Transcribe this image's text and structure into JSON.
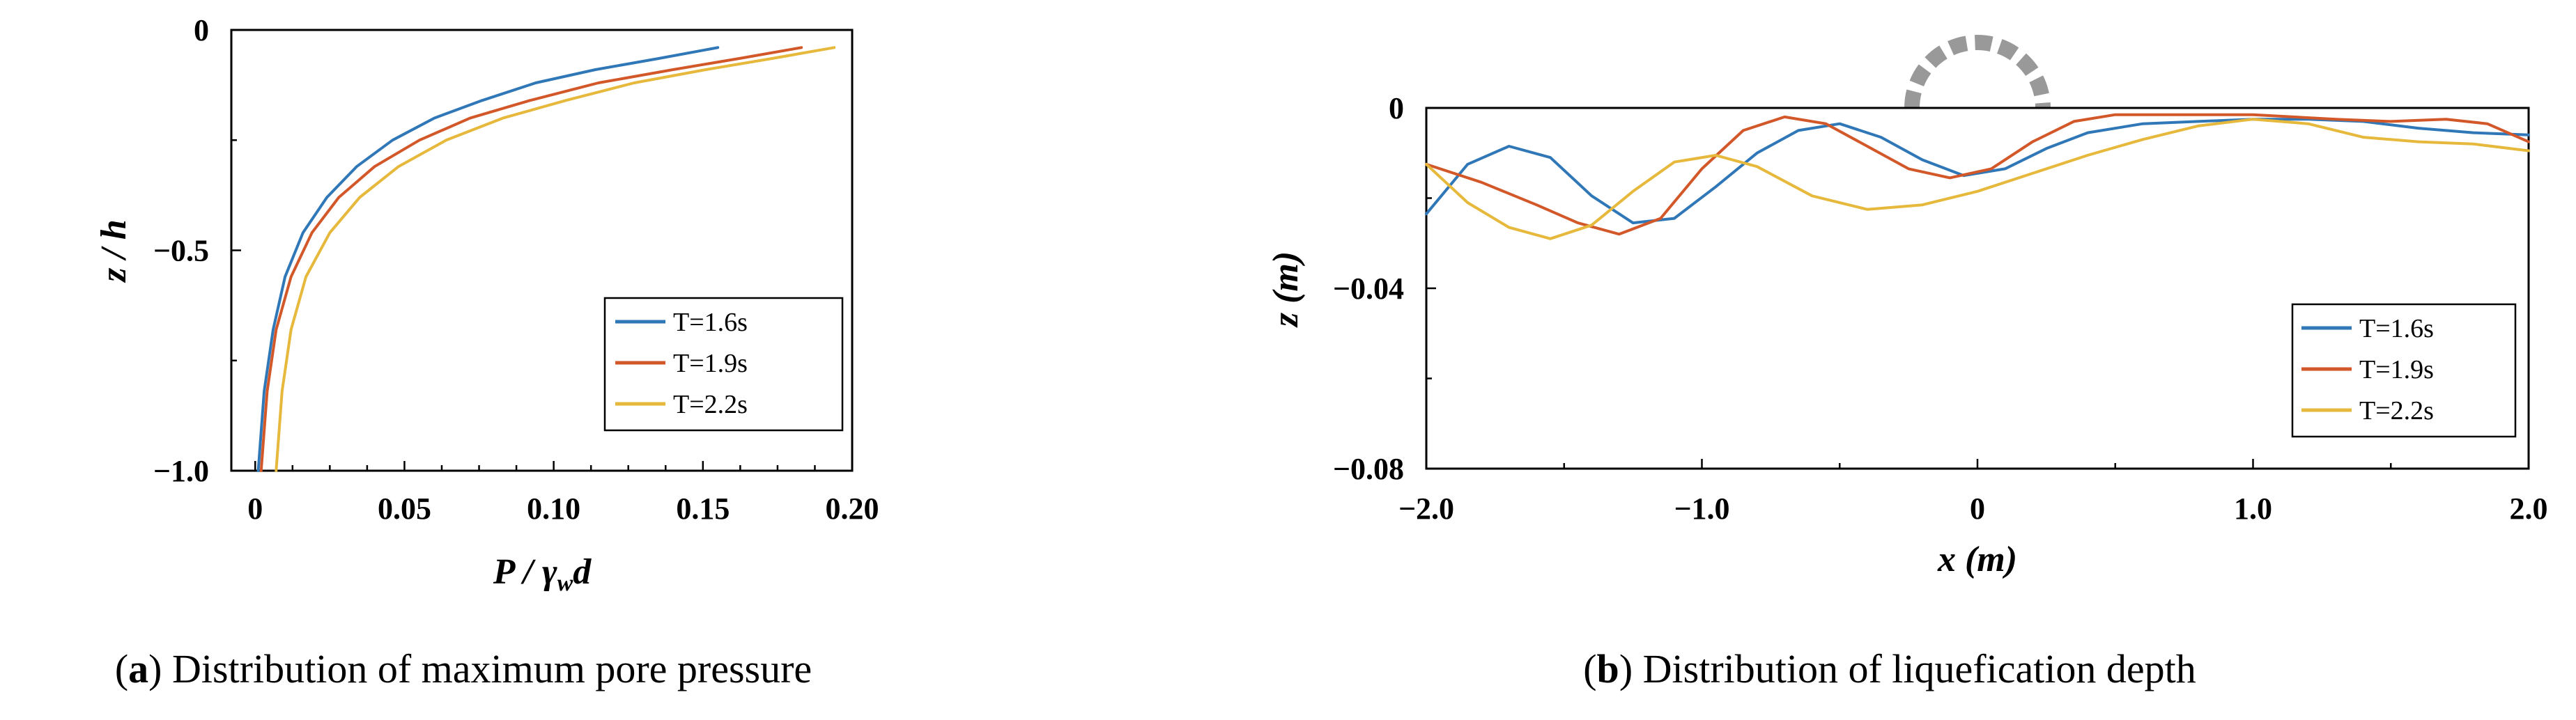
{
  "colors": {
    "series": [
      "#2f77b7",
      "#d2582a",
      "#e6b83b"
    ],
    "breakwater": "#999999"
  },
  "captions": {
    "a_letter": "a",
    "a_text": " Distribution of maximum pore pressure",
    "b_letter": "b",
    "b_text": " Distribution of liquefication depth"
  },
  "chart_data": [
    {
      "type": "line",
      "xlabel_main": "P / γ",
      "xlabel_sub": "w",
      "xlabel_tail": "d",
      "ylabel": "z / h",
      "xlim": [
        -0.008,
        0.2
      ],
      "ylim": [
        -1.0,
        0
      ],
      "x_ticks": [
        0,
        0.05,
        0.1,
        0.15,
        0.2
      ],
      "x_tick_labels": [
        "0",
        "0.05",
        "0.10",
        "0.15",
        "0.20"
      ],
      "y_ticks": [
        0,
        -0.5,
        -1.0
      ],
      "y_tick_labels": [
        "0",
        "−0.5",
        "−1.0"
      ],
      "legend_position": "bottom-right",
      "series": [
        {
          "name": "T=1.6s",
          "x": [
            0.001,
            0.003,
            0.006,
            0.01,
            0.016,
            0.024,
            0.034,
            0.046,
            0.06,
            0.076,
            0.094,
            0.114,
            0.135,
            0.155
          ],
          "y": [
            -1.0,
            -0.82,
            -0.68,
            -0.56,
            -0.46,
            -0.38,
            -0.31,
            -0.25,
            -0.2,
            -0.16,
            -0.12,
            -0.09,
            -0.065,
            -0.04
          ]
        },
        {
          "name": "T=1.9s",
          "x": [
            0.002,
            0.004,
            0.007,
            0.012,
            0.019,
            0.028,
            0.04,
            0.055,
            0.072,
            0.092,
            0.115,
            0.14,
            0.162,
            0.183
          ],
          "y": [
            -1.0,
            -0.82,
            -0.68,
            -0.56,
            -0.46,
            -0.38,
            -0.31,
            -0.25,
            -0.2,
            -0.16,
            -0.12,
            -0.09,
            -0.065,
            -0.04
          ]
        },
        {
          "name": "T=2.2s",
          "x": [
            0.007,
            0.009,
            0.012,
            0.017,
            0.025,
            0.035,
            0.048,
            0.064,
            0.083,
            0.104,
            0.127,
            0.151,
            0.173,
            0.194
          ],
          "y": [
            -1.0,
            -0.82,
            -0.68,
            -0.56,
            -0.46,
            -0.38,
            -0.31,
            -0.25,
            -0.2,
            -0.16,
            -0.12,
            -0.09,
            -0.065,
            -0.04
          ]
        }
      ]
    },
    {
      "type": "line",
      "xlabel": "x (m)",
      "ylabel": "z (m)",
      "xlim": [
        -2.0,
        2.0
      ],
      "ylim": [
        -0.08,
        0
      ],
      "x_ticks": [
        -2,
        -1,
        0,
        1,
        2
      ],
      "x_tick_labels": [
        "−2.0",
        "−1.0",
        "0",
        "1.0",
        "2.0"
      ],
      "y_ticks": [
        0,
        -0.04,
        -0.08
      ],
      "y_tick_labels": [
        "0",
        "−0.04",
        "−0.08"
      ],
      "legend_position": "bottom-right",
      "series": [
        {
          "name": "T=1.6s",
          "x": [
            -2.0,
            -1.85,
            -1.7,
            -1.55,
            -1.4,
            -1.25,
            -1.1,
            -0.95,
            -0.8,
            -0.65,
            -0.5,
            -0.35,
            -0.2,
            -0.05,
            0.1,
            0.25,
            0.4,
            0.6,
            0.8,
            1.0,
            1.2,
            1.4,
            1.6,
            1.8,
            2.0
          ],
          "y": [
            -0.0235,
            -0.0125,
            -0.0085,
            -0.011,
            -0.0195,
            -0.0255,
            -0.0245,
            -0.0175,
            -0.01,
            -0.005,
            -0.0035,
            -0.0065,
            -0.0115,
            -0.015,
            -0.0135,
            -0.009,
            -0.0055,
            -0.0035,
            -0.003,
            -0.0025,
            -0.0025,
            -0.003,
            -0.0045,
            -0.0055,
            -0.006
          ]
        },
        {
          "name": "T=1.9s",
          "x": [
            -2.0,
            -1.8,
            -1.6,
            -1.45,
            -1.3,
            -1.15,
            -1.0,
            -0.85,
            -0.7,
            -0.55,
            -0.4,
            -0.25,
            -0.1,
            0.05,
            0.2,
            0.35,
            0.5,
            0.7,
            1.0,
            1.3,
            1.5,
            1.7,
            1.85,
            2.0
          ],
          "y": [
            -0.0125,
            -0.0165,
            -0.0215,
            -0.0255,
            -0.028,
            -0.0245,
            -0.0135,
            -0.005,
            -0.002,
            -0.0035,
            -0.0085,
            -0.0135,
            -0.0155,
            -0.0135,
            -0.0075,
            -0.003,
            -0.0015,
            -0.0015,
            -0.0015,
            -0.0025,
            -0.003,
            -0.0025,
            -0.0035,
            -0.0075
          ]
        },
        {
          "name": "T=2.2s",
          "x": [
            -2.0,
            -1.85,
            -1.7,
            -1.55,
            -1.4,
            -1.25,
            -1.1,
            -0.95,
            -0.8,
            -0.6,
            -0.4,
            -0.2,
            0.0,
            0.2,
            0.4,
            0.6,
            0.8,
            1.0,
            1.2,
            1.4,
            1.6,
            1.8,
            2.0
          ],
          "y": [
            -0.0125,
            -0.021,
            -0.0265,
            -0.029,
            -0.026,
            -0.0185,
            -0.012,
            -0.0105,
            -0.013,
            -0.0195,
            -0.0225,
            -0.0215,
            -0.0185,
            -0.0145,
            -0.0105,
            -0.007,
            -0.004,
            -0.0025,
            -0.0035,
            -0.0065,
            -0.0075,
            -0.008,
            -0.0095
          ]
        }
      ]
    }
  ]
}
